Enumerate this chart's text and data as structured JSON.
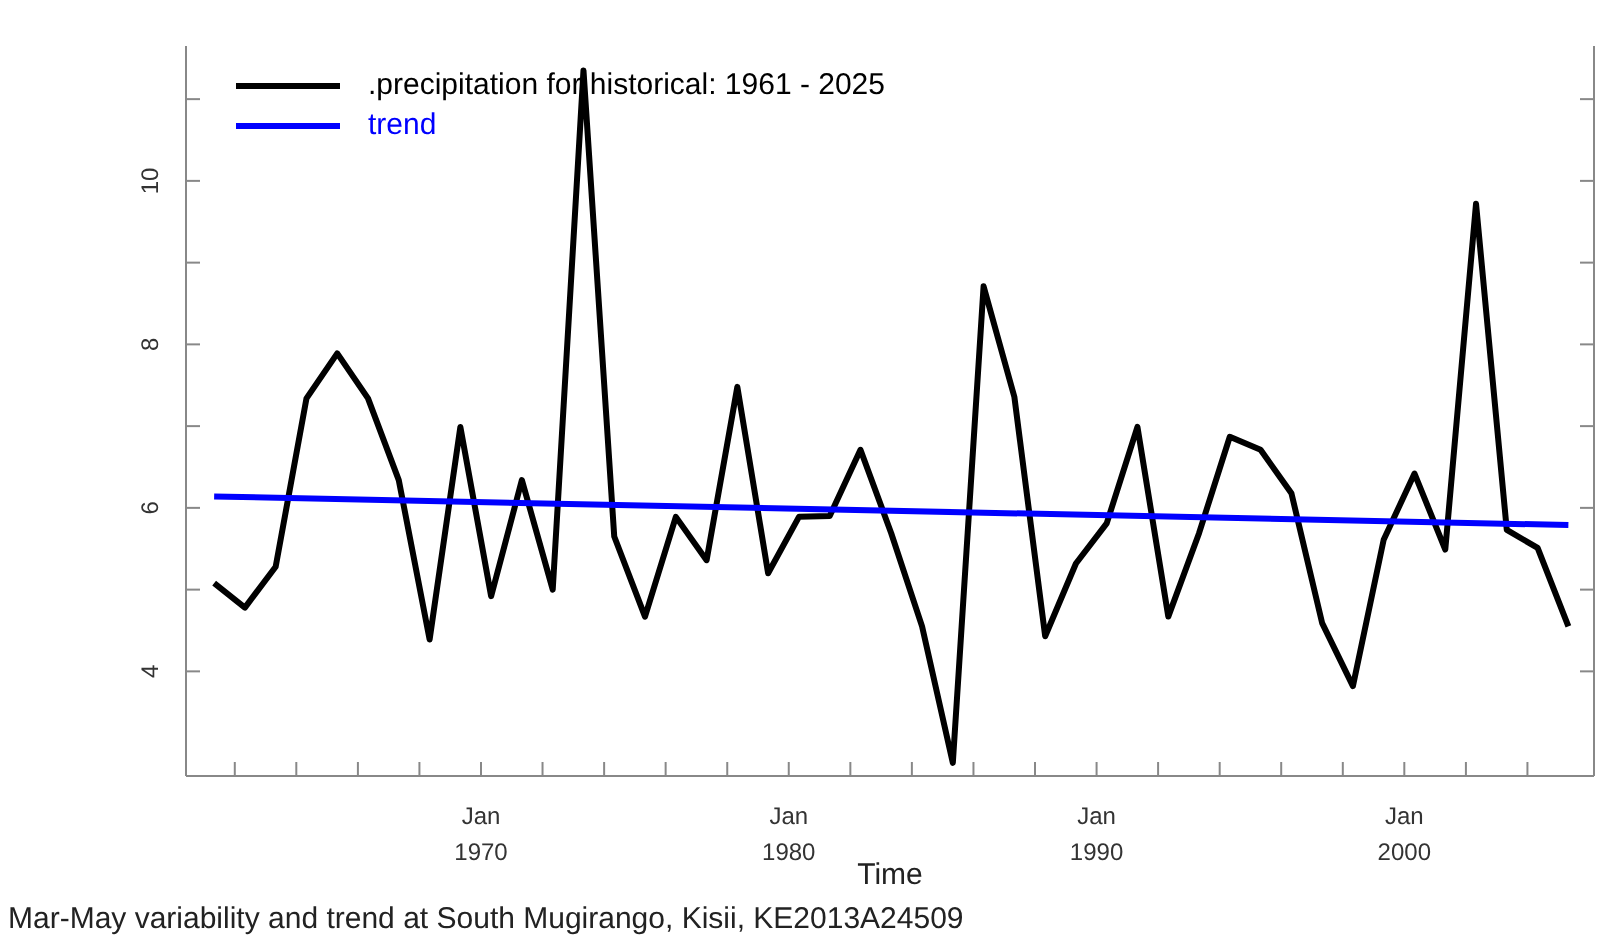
{
  "chart_data": {
    "type": "line",
    "xlabel": "Time",
    "annotations": [
      "Mar-May variability and trend at South Mugirango, Kisii, KE2013A24509"
    ],
    "x": [
      "1961-05",
      "1962-05",
      "1963-05",
      "1964-05",
      "1965-05",
      "1966-05",
      "1967-05",
      "1968-05",
      "1969-05",
      "1970-05",
      "1971-05",
      "1972-05",
      "1973-05",
      "1974-05",
      "1975-05",
      "1976-05",
      "1977-05",
      "1978-05",
      "1979-05",
      "1980-05",
      "1981-05",
      "1982-05",
      "1983-05",
      "1984-05",
      "1985-05",
      "1986-05",
      "1987-05",
      "1988-05",
      "1989-05",
      "1990-05",
      "1991-05",
      "1992-05",
      "1993-05",
      "1994-05",
      "1995-05",
      "1996-05",
      "1997-05",
      "1998-05",
      "1999-05",
      "2000-05",
      "2001-05",
      "2002-05",
      "2003-05",
      "2004-05",
      "2005-05"
    ],
    "series": [
      {
        "name": ".precipitation for historical: 1961 - 2025",
        "color": "#000000",
        "values": [
          5.08,
          4.78,
          5.28,
          7.34,
          7.89,
          7.34,
          6.34,
          4.39,
          6.99,
          4.92,
          6.34,
          5.0,
          11.35,
          5.65,
          4.67,
          5.89,
          5.36,
          7.48,
          5.2,
          5.89,
          5.9,
          6.71,
          5.69,
          4.55,
          2.88,
          8.71,
          7.36,
          4.43,
          5.32,
          5.81,
          6.99,
          4.67,
          5.69,
          6.87,
          6.71,
          6.18,
          4.59,
          3.82,
          5.61,
          6.42,
          5.49,
          9.72,
          5.73,
          5.51,
          4.55
        ]
      },
      {
        "name": "trend",
        "color": "#0000ff",
        "x": [
          "1961-05",
          "2005-05"
        ],
        "values": [
          6.14,
          5.79
        ]
      }
    ],
    "xlim": [
      "1960-06",
      "2006-03"
    ],
    "xticks": [
      {
        "value": "1962-01",
        "label": null
      },
      {
        "value": "1964-01",
        "label": null
      },
      {
        "value": "1966-01",
        "label": null
      },
      {
        "value": "1968-01",
        "label": null
      },
      {
        "value": "1970-01",
        "label": "Jan 1970"
      },
      {
        "value": "1972-01",
        "label": null
      },
      {
        "value": "1974-01",
        "label": null
      },
      {
        "value": "1976-01",
        "label": null
      },
      {
        "value": "1978-01",
        "label": null
      },
      {
        "value": "1980-01",
        "label": "Jan 1980"
      },
      {
        "value": "1982-01",
        "label": null
      },
      {
        "value": "1984-01",
        "label": null
      },
      {
        "value": "1986-01",
        "label": null
      },
      {
        "value": "1988-01",
        "label": null
      },
      {
        "value": "1990-01",
        "label": "Jan 1990"
      },
      {
        "value": "1992-01",
        "label": null
      },
      {
        "value": "1994-01",
        "label": null
      },
      {
        "value": "1996-01",
        "label": null
      },
      {
        "value": "1998-01",
        "label": null
      },
      {
        "value": "2000-01",
        "label": "Jan 2000"
      },
      {
        "value": "2002-01",
        "label": null
      },
      {
        "value": "2004-01",
        "label": null
      }
    ],
    "ylim": [
      2.72,
      11.65
    ],
    "yticks": [
      4,
      {
        "value": 5,
        "label": null
      },
      6,
      {
        "value": 7,
        "label": null
      },
      8,
      {
        "value": 9,
        "label": null
      },
      10,
      {
        "value": 11,
        "label": null
      }
    ],
    "legend": "top left",
    "grid": false,
    "marker": "none",
    "line_style": "solid"
  }
}
